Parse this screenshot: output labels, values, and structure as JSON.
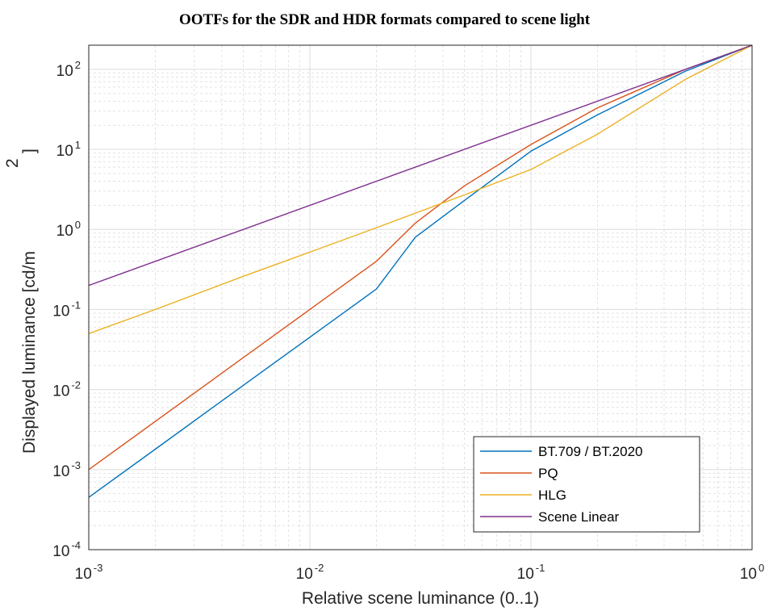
{
  "chart_data": {
    "type": "line",
    "title": "OOTFs for the SDR and HDR formats compared to scene light",
    "xlabel": "Relative scene luminance (0..1)",
    "ylabel_main": "Displayed luminance [cd/m",
    "ylabel_exp": "2",
    "ylabel_close": "]",
    "x_scale": "log",
    "y_scale": "log",
    "xlim": [
      0.001,
      1
    ],
    "ylim": [
      0.0001,
      200
    ],
    "grid": true,
    "minor_grid": true,
    "legend_position": "bottom-right",
    "x_ticks": [
      {
        "value": 0.001,
        "base": "10",
        "exp": "-3"
      },
      {
        "value": 0.01,
        "base": "10",
        "exp": "-2"
      },
      {
        "value": 0.1,
        "base": "10",
        "exp": "-1"
      },
      {
        "value": 1,
        "base": "10",
        "exp": "0"
      }
    ],
    "y_ticks": [
      {
        "value": 0.0001,
        "base": "10",
        "exp": "-4"
      },
      {
        "value": 0.001,
        "base": "10",
        "exp": "-3"
      },
      {
        "value": 0.01,
        "base": "10",
        "exp": "-2"
      },
      {
        "value": 0.1,
        "base": "10",
        "exp": "-1"
      },
      {
        "value": 1,
        "base": "10",
        "exp": "0"
      },
      {
        "value": 10,
        "base": "10",
        "exp": "1"
      },
      {
        "value": 100,
        "base": "10",
        "exp": "2"
      }
    ],
    "series": [
      {
        "name": "BT.709 / BT.2020",
        "color": "#0072bd",
        "x": [
          0.001,
          0.002,
          0.005,
          0.01,
          0.02,
          0.03,
          0.05,
          0.1,
          0.2,
          0.5,
          1
        ],
        "y": [
          0.00045,
          0.0018,
          0.0113,
          0.045,
          0.18,
          0.8,
          2.3,
          9.5,
          27,
          95,
          200
        ]
      },
      {
        "name": "PQ",
        "color": "#d95319",
        "x": [
          0.001,
          0.002,
          0.005,
          0.01,
          0.02,
          0.03,
          0.05,
          0.1,
          0.2,
          0.5,
          1
        ],
        "y": [
          0.001,
          0.004,
          0.025,
          0.1,
          0.4,
          1.2,
          3.5,
          11.5,
          33,
          100,
          200
        ]
      },
      {
        "name": "HLG",
        "color": "#edb120",
        "x": [
          0.001,
          0.002,
          0.005,
          0.01,
          0.02,
          0.05,
          0.1,
          0.2,
          0.5,
          1
        ],
        "y": [
          0.05,
          0.1,
          0.26,
          0.52,
          1.05,
          2.7,
          5.6,
          15.5,
          75,
          200
        ]
      },
      {
        "name": "Scene Linear",
        "color": "#7e2f8e",
        "x": [
          0.001,
          1
        ],
        "y": [
          0.2,
          200
        ]
      }
    ]
  }
}
